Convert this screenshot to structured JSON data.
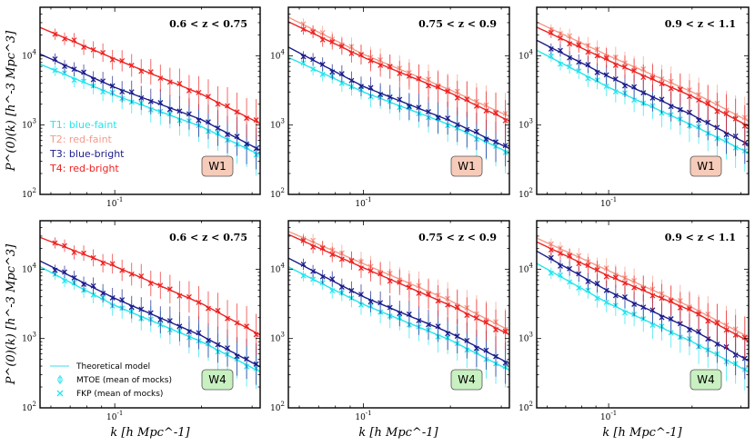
{
  "ylabel": "P^(0)(k) [h^-3 Mpc^3]",
  "xlabel": "k [h Mpc^-1]",
  "colors": {
    "T1": "#22e5ee",
    "T2": "#f49a8a",
    "T3": "#1c1c8c",
    "T4": "#ee2222",
    "model_legend": "#7fe8f0",
    "field_W1_bg": "#f7cbb9",
    "field_W4_bg": "#c8f0c0"
  },
  "legend_top": {
    "entries": [
      {
        "label": "T1: blue-faint",
        "color": "#22e5ee"
      },
      {
        "label": "T2: red-faint",
        "color": "#f49a8a"
      },
      {
        "label": "T3: blue-bright",
        "color": "#1c1c8c"
      },
      {
        "label": "T4: red-bright",
        "color": "#ee2222"
      }
    ]
  },
  "legend_bottom": {
    "entries": [
      {
        "label": "Theoretical model",
        "marker": "line"
      },
      {
        "label": "MTOE (mean of mocks)",
        "marker": "phi"
      },
      {
        "label": "FKP (mean of mocks)",
        "marker": "x"
      }
    ]
  },
  "chart_data": [
    {
      "type": "line",
      "field": "W1",
      "redshift_label": "0.6 < z < 0.75",
      "xscale": "log",
      "yscale": "log",
      "xlim": [
        0.055,
        0.32
      ],
      "ylim": [
        100,
        50000
      ],
      "xtick_labels": [
        "10^-1"
      ],
      "ytick_labels": [
        "10^2",
        "10^3",
        "10^4"
      ],
      "series": [
        {
          "name": "T1: blue-faint",
          "color": "#22e5ee",
          "k": [
            0.06,
            0.1,
            0.2,
            0.3
          ],
          "pk": [
            6500,
            2700,
            950,
            420
          ]
        },
        {
          "name": "T3: blue-bright",
          "color": "#1c1c8c",
          "k": [
            0.06,
            0.1,
            0.2,
            0.3
          ],
          "pk": [
            9000,
            3500,
            1200,
            500
          ]
        },
        {
          "name": "T4: red-bright",
          "color": "#ee2222",
          "k": [
            0.06,
            0.1,
            0.2,
            0.3
          ],
          "pk": [
            22000,
            9000,
            2800,
            1200
          ]
        }
      ]
    },
    {
      "type": "line",
      "field": "W1",
      "redshift_label": "0.75 < z < 0.9",
      "xscale": "log",
      "yscale": "log",
      "xlim": [
        0.055,
        0.32
      ],
      "ylim": [
        100,
        50000
      ],
      "xtick_labels": [
        "10^-1"
      ],
      "ytick_labels": [
        "10^2",
        "10^3",
        "10^4"
      ],
      "series": [
        {
          "name": "T1: blue-faint",
          "color": "#22e5ee",
          "k": [
            0.06,
            0.1,
            0.2,
            0.3
          ],
          "pk": [
            8000,
            3000,
            1000,
            450
          ]
        },
        {
          "name": "T2: red-faint",
          "color": "#f49a8a",
          "k": [
            0.06,
            0.1,
            0.2,
            0.3
          ],
          "pk": [
            30000,
            10500,
            3200,
            1500
          ]
        },
        {
          "name": "T3: blue-bright",
          "color": "#1c1c8c",
          "k": [
            0.06,
            0.1,
            0.2,
            0.3
          ],
          "pk": [
            11000,
            3600,
            1150,
            520
          ]
        },
        {
          "name": "T4: red-bright",
          "color": "#ee2222",
          "k": [
            0.06,
            0.1,
            0.2,
            0.3
          ],
          "pk": [
            26000,
            9500,
            2900,
            1300
          ]
        }
      ]
    },
    {
      "type": "line",
      "field": "W1",
      "redshift_label": "0.9 < z < 1.1",
      "xscale": "log",
      "yscale": "log",
      "xlim": [
        0.055,
        0.32
      ],
      "ylim": [
        100,
        50000
      ],
      "xtick_labels": [
        "10^-1"
      ],
      "ytick_labels": [
        "10^2",
        "10^3",
        "10^4"
      ],
      "series": [
        {
          "name": "T1: blue-faint",
          "color": "#22e5ee",
          "k": [
            0.06,
            0.1,
            0.2,
            0.3
          ],
          "pk": [
            10000,
            3500,
            1000,
            450
          ]
        },
        {
          "name": "T2: red-faint",
          "color": "#f49a8a",
          "k": [
            0.06,
            0.1,
            0.2,
            0.3
          ],
          "pk": [
            26000,
            10000,
            3000,
            1300
          ]
        },
        {
          "name": "T3: blue-bright",
          "color": "#1c1c8c",
          "k": [
            0.06,
            0.1,
            0.2,
            0.3
          ],
          "pk": [
            14000,
            5000,
            1400,
            600
          ]
        },
        {
          "name": "T4: red-bright",
          "color": "#ee2222",
          "k": [
            0.06,
            0.1,
            0.2,
            0.3
          ],
          "pk": [
            22000,
            8500,
            2600,
            1100
          ]
        }
      ]
    },
    {
      "type": "line",
      "field": "W4",
      "redshift_label": "0.6 < z < 0.75",
      "xscale": "log",
      "yscale": "log",
      "xlim": [
        0.055,
        0.32
      ],
      "ylim": [
        100,
        50000
      ],
      "xtick_labels": [
        "10^-1"
      ],
      "ytick_labels": [
        "10^2",
        "10^3",
        "10^4"
      ],
      "series": [
        {
          "name": "T1: blue-faint",
          "color": "#22e5ee",
          "k": [
            0.06,
            0.1,
            0.2,
            0.3
          ],
          "pk": [
            9000,
            3000,
            900,
            380
          ]
        },
        {
          "name": "T3: blue-bright",
          "color": "#1c1c8c",
          "k": [
            0.06,
            0.1,
            0.2,
            0.3
          ],
          "pk": [
            11000,
            3800,
            1100,
            450
          ]
        },
        {
          "name": "T4: red-bright",
          "color": "#ee2222",
          "k": [
            0.06,
            0.1,
            0.2,
            0.3
          ],
          "pk": [
            25000,
            11000,
            3200,
            1300
          ]
        }
      ]
    },
    {
      "type": "line",
      "field": "W4",
      "redshift_label": "0.75 < z < 0.9",
      "xscale": "log",
      "yscale": "log",
      "xlim": [
        0.055,
        0.32
      ],
      "ylim": [
        100,
        50000
      ],
      "xtick_labels": [
        "10^-1"
      ],
      "ytick_labels": [
        "10^2",
        "10^3",
        "10^4"
      ],
      "series": [
        {
          "name": "T1: blue-faint",
          "color": "#22e5ee",
          "k": [
            0.06,
            0.1,
            0.2,
            0.3
          ],
          "pk": [
            9000,
            3100,
            950,
            400
          ]
        },
        {
          "name": "T2: red-faint",
          "color": "#f49a8a",
          "k": [
            0.06,
            0.1,
            0.2,
            0.3
          ],
          "pk": [
            30000,
            12000,
            3500,
            1500
          ]
        },
        {
          "name": "T3: blue-bright",
          "color": "#1c1c8c",
          "k": [
            0.06,
            0.1,
            0.2,
            0.3
          ],
          "pk": [
            12000,
            4000,
            1200,
            500
          ]
        },
        {
          "name": "T4: red-bright",
          "color": "#ee2222",
          "k": [
            0.06,
            0.1,
            0.2,
            0.3
          ],
          "pk": [
            27000,
            10500,
            3000,
            1300
          ]
        }
      ]
    },
    {
      "type": "line",
      "field": "W4",
      "redshift_label": "0.9 < z < 1.1",
      "xscale": "log",
      "yscale": "log",
      "xlim": [
        0.055,
        0.32
      ],
      "ylim": [
        100,
        50000
      ],
      "xtick_labels": [
        "10^-1"
      ],
      "ytick_labels": [
        "10^2",
        "10^3",
        "10^4"
      ],
      "series": [
        {
          "name": "T1: blue-faint",
          "color": "#22e5ee",
          "k": [
            0.06,
            0.1,
            0.2,
            0.3
          ],
          "pk": [
            10000,
            3200,
            900,
            380
          ]
        },
        {
          "name": "T2: red-faint",
          "color": "#f49a8a",
          "k": [
            0.06,
            0.1,
            0.2,
            0.3
          ],
          "pk": [
            24000,
            9500,
            2800,
            1200
          ]
        },
        {
          "name": "T3: blue-bright",
          "color": "#1c1c8c",
          "k": [
            0.06,
            0.1,
            0.2,
            0.3
          ],
          "pk": [
            15000,
            4800,
            1350,
            550
          ]
        },
        {
          "name": "T4: red-bright",
          "color": "#ee2222",
          "k": [
            0.06,
            0.1,
            0.2,
            0.3
          ],
          "pk": [
            21000,
            8000,
            2500,
            1050
          ]
        }
      ]
    }
  ]
}
